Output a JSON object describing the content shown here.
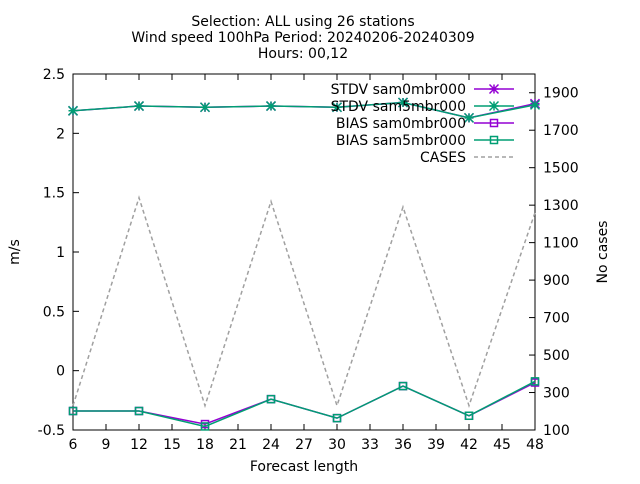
{
  "chart_data": {
    "type": "line",
    "title_lines": [
      "Selection: ALL using    26 stations",
      "Wind speed 100hPa   Period: 20240206-20240309",
      "Hours: 00,12"
    ],
    "xlabel": "Forecast length",
    "ylabel": "m/s",
    "y2label": "No cases",
    "xlim": [
      6,
      48
    ],
    "ylim": [
      -0.5,
      2.5
    ],
    "y2lim": [
      100,
      2000
    ],
    "xticks": [
      6,
      9,
      12,
      15,
      18,
      21,
      24,
      27,
      30,
      33,
      36,
      39,
      42,
      45,
      48
    ],
    "yticks": [
      -0.5,
      0,
      0.5,
      1,
      1.5,
      2,
      2.5
    ],
    "ytick_labels": [
      "-0.5",
      "0",
      "0.5",
      "1",
      "1.5",
      "2",
      "2.5"
    ],
    "y2ticks": [
      100,
      300,
      500,
      700,
      900,
      1100,
      1300,
      1500,
      1700,
      1900
    ],
    "grid": false,
    "legend_position": "top-right",
    "series": [
      {
        "name": "STDV sam0mbr000",
        "axis": "y1",
        "color": "#9400d3",
        "style": "solid",
        "marker": "star",
        "x": [
          6,
          12,
          18,
          24,
          30,
          36,
          42,
          48
        ],
        "values": [
          2.19,
          2.23,
          2.22,
          2.23,
          2.22,
          2.26,
          2.13,
          2.25
        ]
      },
      {
        "name": "STDV sam5mbr000",
        "axis": "y1",
        "color": "#009e73",
        "style": "solid",
        "marker": "star",
        "x": [
          6,
          12,
          18,
          24,
          30,
          36,
          42,
          48
        ],
        "values": [
          2.19,
          2.23,
          2.22,
          2.23,
          2.22,
          2.26,
          2.13,
          2.24
        ]
      },
      {
        "name": "BIAS sam0mbr000",
        "axis": "y1",
        "color": "#9400d3",
        "style": "solid",
        "marker": "square",
        "x": [
          6,
          12,
          18,
          24,
          30,
          36,
          42,
          48
        ],
        "values": [
          -0.34,
          -0.34,
          -0.45,
          -0.24,
          -0.4,
          -0.13,
          -0.38,
          -0.1
        ]
      },
      {
        "name": "BIAS sam5mbr000",
        "axis": "y1",
        "color": "#009e73",
        "style": "solid",
        "marker": "square",
        "x": [
          6,
          12,
          18,
          24,
          30,
          36,
          42,
          48
        ],
        "values": [
          -0.34,
          -0.34,
          -0.47,
          -0.24,
          -0.4,
          -0.13,
          -0.38,
          -0.09
        ]
      },
      {
        "name": "CASES",
        "axis": "y2",
        "color": "#a0a0a0",
        "style": "dashed",
        "marker": "none",
        "x": [
          6,
          12,
          18,
          24,
          30,
          36,
          42,
          48
        ],
        "values": [
          230,
          1340,
          230,
          1320,
          230,
          1290,
          230,
          1260
        ]
      }
    ]
  }
}
